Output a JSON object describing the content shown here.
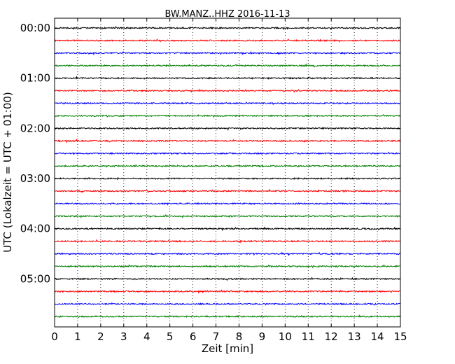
{
  "chart_data": {
    "type": "line",
    "title": "BW.MANZ..HHZ 2016-11-13",
    "xlabel": "Zeit  [min]",
    "ylabel": "UTC (Lokalzeit = UTC + 01:00)",
    "xlim": [
      0,
      15
    ],
    "x_ticks": [
      "0",
      "1",
      "2",
      "3",
      "4",
      "5",
      "6",
      "7",
      "8",
      "9",
      "10",
      "11",
      "12",
      "13",
      "14",
      "15"
    ],
    "y_ticks": [
      "00:00",
      "01:00",
      "02:00",
      "03:00",
      "04:00",
      "05:00"
    ],
    "grid": "vertical dotted",
    "trace_count": 24,
    "trace_interval_minutes": 15,
    "trace_colors": [
      "#000000",
      "#ff0000",
      "#0000ff",
      "#008000"
    ]
  }
}
